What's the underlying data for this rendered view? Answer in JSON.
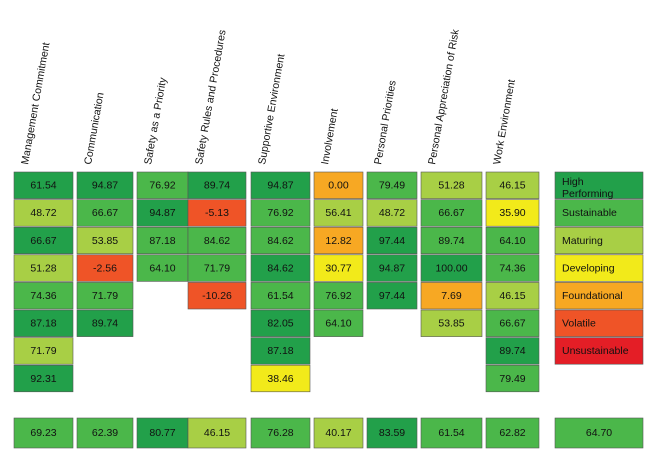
{
  "columns": [
    {
      "header": "Management Commitment",
      "values": [
        "61.54",
        "48.72",
        "66.67",
        "51.28",
        "74.36",
        "87.18",
        "71.79",
        "92.31"
      ],
      "colors": [
        "#22a04a",
        "#a8cf45",
        "#22a04a",
        "#a8cf45",
        "#4bb74a",
        "#22a04a",
        "#a8cf45",
        "#22a04a"
      ],
      "average": "69.23",
      "average_color": "#4bb74a"
    },
    {
      "header": "Communication",
      "values": [
        "94.87",
        "66.67",
        "53.85",
        "-2.56",
        "71.79",
        "89.74"
      ],
      "colors": [
        "#22a04a",
        "#4bb74a",
        "#a8cf45",
        "#ef5427",
        "#4bb74a",
        "#22a04a"
      ],
      "average": "62.39",
      "average_color": "#4bb74a"
    },
    {
      "header": "Safety as a Priority",
      "values": [
        "76.92",
        "94.87",
        "87.18",
        "64.10"
      ],
      "colors": [
        "#4bb74a",
        "#22a04a",
        "#4bb74a",
        "#4bb74a"
      ],
      "average": "80.77",
      "average_color": "#22a04a"
    },
    {
      "header": "Safety Rules and Procedures",
      "values": [
        "89.74",
        "-5.13",
        "84.62",
        "71.79",
        "-10.26"
      ],
      "colors": [
        "#22a04a",
        "#ef5427",
        "#4bb74a",
        "#4bb74a",
        "#ef5427"
      ],
      "average": "46.15",
      "average_color": "#a8cf45"
    },
    {
      "header": "Supportive Environment",
      "values": [
        "94.87",
        "76.92",
        "84.62",
        "84.62",
        "61.54",
        "82.05",
        "87.18",
        "38.46"
      ],
      "colors": [
        "#22a04a",
        "#4bb74a",
        "#4bb74a",
        "#22a04a",
        "#4bb74a",
        "#22a04a",
        "#22a04a",
        "#f2ea1a"
      ],
      "average": "76.28",
      "average_color": "#4bb74a"
    },
    {
      "header": "Involvement",
      "values": [
        "0.00",
        "56.41",
        "12.82",
        "30.77",
        "76.92",
        "64.10"
      ],
      "colors": [
        "#f7a823",
        "#a8cf45",
        "#f7a823",
        "#f2ea1a",
        "#4bb74a",
        "#4bb74a"
      ],
      "average": "40.17",
      "average_color": "#a8cf45"
    },
    {
      "header": "Personal Priorities",
      "values": [
        "79.49",
        "48.72",
        "97.44",
        "94.87",
        "97.44"
      ],
      "colors": [
        "#4bb74a",
        "#a8cf45",
        "#22a04a",
        "#22a04a",
        "#22a04a"
      ],
      "average": "83.59",
      "average_color": "#22a04a"
    },
    {
      "header": "Personal Appreciation of Risk",
      "values": [
        "51.28",
        "66.67",
        "89.74",
        "100.00",
        "7.69",
        "53.85"
      ],
      "colors": [
        "#a8cf45",
        "#4bb74a",
        "#4bb74a",
        "#22a04a",
        "#f7a823",
        "#a8cf45"
      ],
      "average": "61.54",
      "average_color": "#4bb74a"
    },
    {
      "header": "Work Environment",
      "values": [
        "46.15",
        "35.90",
        "64.10",
        "74.36",
        "46.15",
        "66.67",
        "89.74",
        "79.49"
      ],
      "colors": [
        "#a8cf45",
        "#f2ea1a",
        "#4bb74a",
        "#4bb74a",
        "#a8cf45",
        "#4bb74a",
        "#22a04a",
        "#4bb74a"
      ],
      "average": "62.82",
      "average_color": "#4bb74a"
    }
  ],
  "legend": [
    {
      "label": "High Performing",
      "color": "#22a04a"
    },
    {
      "label": "Sustainable",
      "color": "#4bb74a"
    },
    {
      "label": "Maturing",
      "color": "#a8cf45"
    },
    {
      "label": "Developing",
      "color": "#f2ea1a"
    },
    {
      "label": "Foundational",
      "color": "#f7a823"
    },
    {
      "label": "Volatile",
      "color": "#ef5427"
    },
    {
      "label": "Unsustainable",
      "color": "#e41e26"
    }
  ],
  "overall": "64.70",
  "overall_color": "#4bb74a"
}
